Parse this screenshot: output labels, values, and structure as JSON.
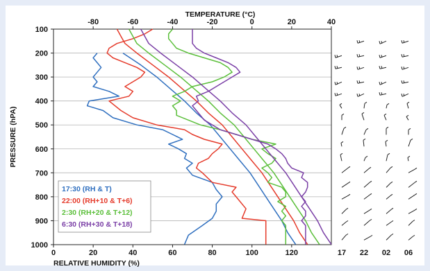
{
  "chart_data": {
    "type": "line",
    "title": "",
    "y_axis": {
      "label": "PRESSURE (hPA)",
      "range": [
        1000,
        100
      ],
      "ticks": [
        100,
        200,
        300,
        400,
        500,
        600,
        700,
        800,
        900,
        1000
      ]
    },
    "x_bottom": {
      "label": "RELATIVE HUMIDITY (%)",
      "range": [
        0,
        140
      ],
      "ticks": [
        0,
        20,
        40,
        60,
        80,
        100,
        120
      ]
    },
    "x_top": {
      "label": "TEMPERATURE (°C)",
      "range": [
        -100,
        40
      ],
      "ticks": [
        -80,
        -60,
        -40,
        -20,
        0,
        20,
        40
      ]
    },
    "grid": "horizontal",
    "legend_position": "lower-left",
    "legend": [
      {
        "label": "17:30 (RH & T)",
        "color": "#2f6fbf"
      },
      {
        "label": "22:00 (RH+10 & T+6)",
        "color": "#e53a2a"
      },
      {
        "label": "2:30 (RH+20 & T+12)",
        "color": "#5bbf3a"
      },
      {
        "label": "6:30 (RH+30 & T+18)",
        "color": "#7a3fa6"
      }
    ],
    "series": [
      {
        "name": "17:30 (RH & T)",
        "color": "#2f6fbf",
        "rh": [
          [
            999,
            66
          ],
          [
            960,
            68
          ],
          [
            920,
            75
          ],
          [
            890,
            80
          ],
          [
            860,
            82
          ],
          [
            830,
            82
          ],
          [
            800,
            85
          ],
          [
            770,
            82
          ],
          [
            740,
            80
          ],
          [
            710,
            70
          ],
          [
            680,
            67
          ],
          [
            660,
            70
          ],
          [
            640,
            66
          ],
          [
            620,
            67
          ],
          [
            600,
            63
          ],
          [
            580,
            58
          ],
          [
            560,
            65
          ],
          [
            540,
            60
          ],
          [
            520,
            55
          ],
          [
            500,
            42
          ],
          [
            470,
            30
          ],
          [
            440,
            25
          ],
          [
            420,
            17
          ],
          [
            400,
            18
          ],
          [
            380,
            33
          ],
          [
            360,
            28
          ],
          [
            340,
            20
          ],
          [
            320,
            22
          ],
          [
            300,
            20
          ],
          [
            280,
            22
          ],
          [
            260,
            24
          ],
          [
            240,
            22
          ],
          [
            220,
            20
          ],
          [
            200,
            22
          ]
        ],
        "temp": [
          [
            999,
            22
          ],
          [
            950,
            18
          ],
          [
            900,
            15
          ],
          [
            850,
            11
          ],
          [
            800,
            7
          ],
          [
            750,
            3
          ],
          [
            700,
            -1
          ],
          [
            650,
            -6
          ],
          [
            600,
            -11
          ],
          [
            550,
            -16
          ],
          [
            500,
            -21
          ],
          [
            450,
            -28
          ],
          [
            400,
            -34
          ],
          [
            350,
            -41
          ],
          [
            300,
            -48
          ],
          [
            250,
            -56
          ],
          [
            200,
            -65
          ]
        ]
      },
      {
        "name": "22:00 (RH+10 & T+6)",
        "color": "#e53a2a",
        "rh": [
          [
            999,
            107
          ],
          [
            960,
            107
          ],
          [
            920,
            107
          ],
          [
            900,
            107
          ],
          [
            890,
            95
          ],
          [
            850,
            97
          ],
          [
            800,
            92
          ],
          [
            780,
            90
          ],
          [
            760,
            92
          ],
          [
            740,
            80
          ],
          [
            700,
            75
          ],
          [
            680,
            72
          ],
          [
            660,
            73
          ],
          [
            640,
            78
          ],
          [
            620,
            80
          ],
          [
            600,
            83
          ],
          [
            580,
            85
          ],
          [
            560,
            76
          ],
          [
            540,
            70
          ],
          [
            520,
            66
          ],
          [
            500,
            52
          ],
          [
            470,
            40
          ],
          [
            440,
            34
          ],
          [
            400,
            28
          ],
          [
            380,
            38
          ],
          [
            360,
            40
          ],
          [
            340,
            36
          ],
          [
            320,
            40
          ],
          [
            300,
            44
          ],
          [
            280,
            46
          ],
          [
            260,
            42
          ],
          [
            240,
            36
          ],
          [
            220,
            30
          ],
          [
            200,
            27
          ],
          [
            180,
            28
          ],
          [
            160,
            32
          ],
          [
            140,
            40
          ],
          [
            120,
            46
          ],
          [
            100,
            50
          ]
        ],
        "temp": [
          [
            999,
            28
          ],
          [
            950,
            24
          ],
          [
            900,
            21
          ],
          [
            850,
            17
          ],
          [
            800,
            13
          ],
          [
            750,
            9
          ],
          [
            700,
            5
          ],
          [
            650,
            0
          ],
          [
            600,
            -5
          ],
          [
            550,
            -10
          ],
          [
            500,
            -15
          ],
          [
            450,
            -22
          ],
          [
            400,
            -28
          ],
          [
            350,
            -35
          ],
          [
            300,
            -42
          ],
          [
            250,
            -50
          ],
          [
            200,
            -58
          ],
          [
            160,
            -64
          ],
          [
            130,
            -66
          ],
          [
            100,
            -68
          ]
        ]
      },
      {
        "name": "2:30 (RH+20 & T+12)",
        "color": "#5bbf3a",
        "rh": [
          [
            999,
            117
          ],
          [
            960,
            117
          ],
          [
            920,
            117
          ],
          [
            900,
            115
          ],
          [
            880,
            117
          ],
          [
            860,
            115
          ],
          [
            840,
            117
          ],
          [
            820,
            113
          ],
          [
            800,
            117
          ],
          [
            780,
            117
          ],
          [
            760,
            115
          ],
          [
            740,
            108
          ],
          [
            720,
            110
          ],
          [
            700,
            108
          ],
          [
            680,
            105
          ],
          [
            660,
            110
          ],
          [
            640,
            112
          ],
          [
            620,
            108
          ],
          [
            600,
            105
          ],
          [
            580,
            112
          ],
          [
            560,
            100
          ],
          [
            540,
            92
          ],
          [
            520,
            84
          ],
          [
            500,
            74
          ],
          [
            480,
            68
          ],
          [
            460,
            62
          ],
          [
            440,
            62
          ],
          [
            420,
            60
          ],
          [
            400,
            64
          ],
          [
            380,
            60
          ],
          [
            360,
            66
          ],
          [
            340,
            70
          ],
          [
            320,
            80
          ],
          [
            300,
            86
          ],
          [
            280,
            90
          ],
          [
            260,
            88
          ],
          [
            240,
            84
          ],
          [
            220,
            76
          ],
          [
            200,
            68
          ],
          [
            180,
            62
          ],
          [
            160,
            60
          ],
          [
            140,
            58
          ],
          [
            120,
            58
          ],
          [
            100,
            60
          ]
        ],
        "temp": [
          [
            999,
            34
          ],
          [
            950,
            30
          ],
          [
            900,
            27
          ],
          [
            850,
            23
          ],
          [
            800,
            19
          ],
          [
            750,
            15
          ],
          [
            700,
            11
          ],
          [
            650,
            6
          ],
          [
            600,
            1
          ],
          [
            550,
            -4
          ],
          [
            500,
            -9
          ],
          [
            450,
            -16
          ],
          [
            400,
            -22
          ],
          [
            350,
            -29
          ],
          [
            300,
            -36
          ],
          [
            250,
            -44
          ],
          [
            200,
            -52
          ],
          [
            160,
            -58
          ],
          [
            130,
            -60
          ],
          [
            100,
            -62
          ]
        ]
      },
      {
        "name": "6:30 (RH+30 & T+18)",
        "color": "#7a3fa6",
        "rh": [
          [
            999,
            127
          ],
          [
            960,
            127
          ],
          [
            920,
            127
          ],
          [
            900,
            125
          ],
          [
            880,
            127
          ],
          [
            860,
            127
          ],
          [
            840,
            125
          ],
          [
            820,
            127
          ],
          [
            800,
            125
          ],
          [
            780,
            127
          ],
          [
            760,
            128
          ],
          [
            740,
            128
          ],
          [
            720,
            125
          ],
          [
            700,
            126
          ],
          [
            680,
            120
          ],
          [
            660,
            118
          ],
          [
            640,
            117
          ],
          [
            620,
            115
          ],
          [
            600,
            112
          ],
          [
            580,
            108
          ],
          [
            560,
            100
          ],
          [
            540,
            92
          ],
          [
            520,
            84
          ],
          [
            500,
            80
          ],
          [
            480,
            76
          ],
          [
            460,
            74
          ],
          [
            440,
            72
          ],
          [
            420,
            70
          ],
          [
            400,
            73
          ],
          [
            380,
            72
          ],
          [
            360,
            78
          ],
          [
            340,
            82
          ],
          [
            320,
            86
          ],
          [
            300,
            90
          ],
          [
            280,
            94
          ],
          [
            260,
            92
          ],
          [
            240,
            88
          ],
          [
            220,
            82
          ],
          [
            200,
            76
          ],
          [
            180,
            72
          ],
          [
            160,
            70
          ],
          [
            140,
            70
          ],
          [
            120,
            70
          ],
          [
            100,
            70
          ]
        ],
        "temp": [
          [
            999,
            40
          ],
          [
            950,
            36
          ],
          [
            900,
            33
          ],
          [
            850,
            29
          ],
          [
            800,
            25
          ],
          [
            750,
            21
          ],
          [
            700,
            17
          ],
          [
            650,
            12
          ],
          [
            600,
            7
          ],
          [
            550,
            2
          ],
          [
            500,
            -3
          ],
          [
            450,
            -10
          ],
          [
            400,
            -16
          ],
          [
            350,
            -23
          ],
          [
            300,
            -30
          ],
          [
            250,
            -38
          ],
          [
            200,
            -46
          ],
          [
            160,
            -52
          ],
          [
            130,
            -54
          ],
          [
            100,
            -56
          ]
        ]
      }
    ],
    "wind_barbs": {
      "columns": [
        "17",
        "22",
        "02",
        "06"
      ]
    }
  }
}
